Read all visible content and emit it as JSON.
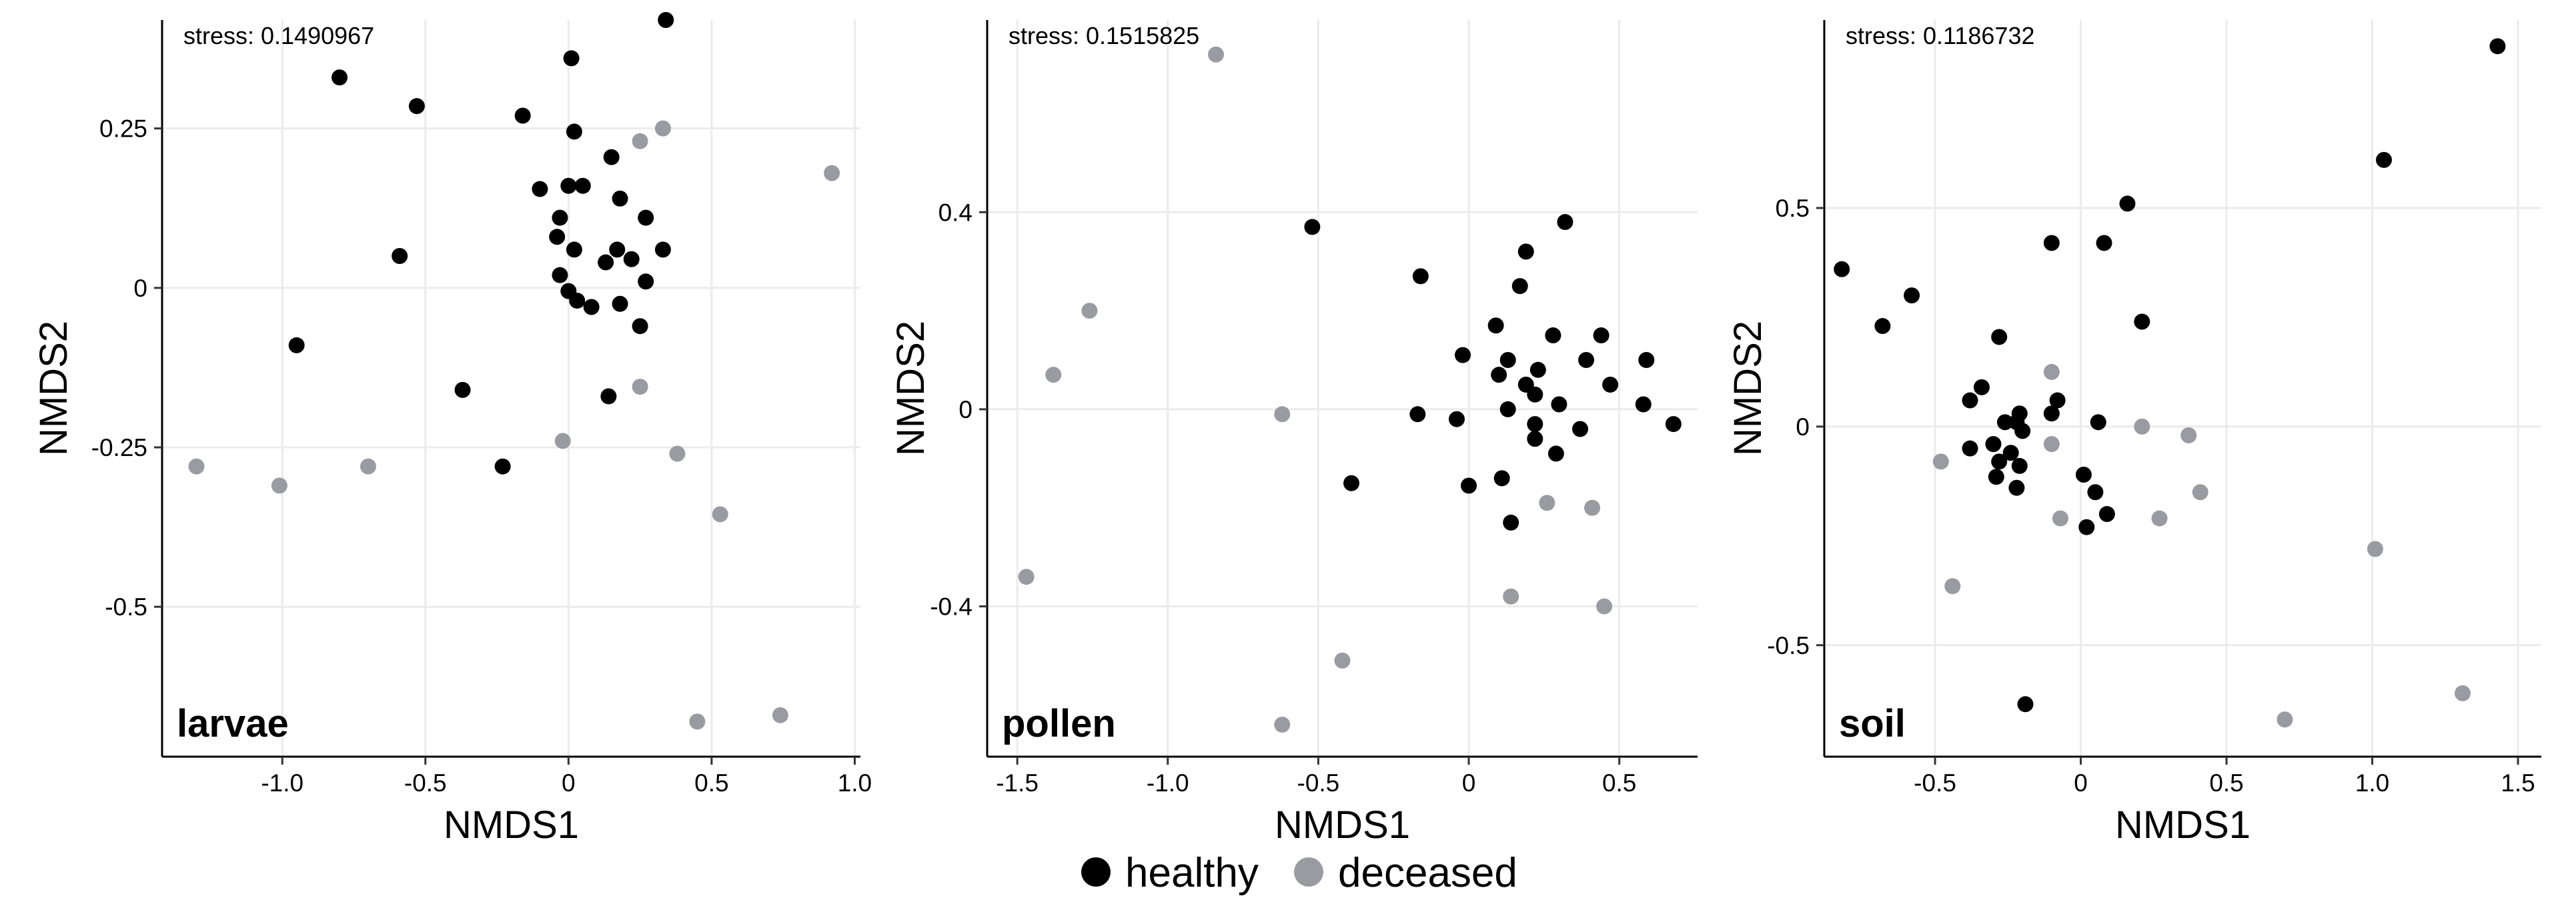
{
  "colors": {
    "healthy": "#000000",
    "deceased": "#9a9ba0"
  },
  "legend": {
    "items": [
      {
        "key": "healthy",
        "label": "healthy"
      },
      {
        "key": "deceased",
        "label": "deceased"
      }
    ]
  },
  "chart_data": [
    {
      "type": "scatter",
      "panel_label": "larvae",
      "stress_text": "stress: 0.1490967",
      "xlabel": "NMDS1",
      "ylabel": "NMDS2",
      "xlim": [
        -1.42,
        1.02
      ],
      "ylim": [
        -0.735,
        0.42
      ],
      "xticks": [
        -1.0,
        -0.5,
        0,
        0.5,
        1.0
      ],
      "xtick_labels": [
        "-1.0",
        "-0.5",
        "0",
        "0.5",
        "1.0"
      ],
      "yticks": [
        -0.5,
        -0.25,
        0,
        0.25
      ],
      "ytick_labels": [
        "-0.5",
        "-0.25",
        "0",
        "0.25"
      ],
      "grid": true,
      "series": [
        {
          "name": "healthy",
          "points": [
            [
              0.34,
              0.42
            ],
            [
              0.01,
              0.36
            ],
            [
              -0.8,
              0.33
            ],
            [
              -0.53,
              0.285
            ],
            [
              -0.16,
              0.27
            ],
            [
              0.02,
              0.245
            ],
            [
              0.15,
              0.205
            ],
            [
              -0.1,
              0.155
            ],
            [
              0.0,
              0.16
            ],
            [
              0.05,
              0.16
            ],
            [
              0.18,
              0.14
            ],
            [
              -0.03,
              0.11
            ],
            [
              0.27,
              0.11
            ],
            [
              -0.04,
              0.08
            ],
            [
              0.02,
              0.06
            ],
            [
              0.17,
              0.06
            ],
            [
              0.33,
              0.06
            ],
            [
              0.22,
              0.045
            ],
            [
              0.13,
              0.04
            ],
            [
              -0.03,
              0.02
            ],
            [
              0.27,
              0.01
            ],
            [
              -0.59,
              0.05
            ],
            [
              0.0,
              -0.005
            ],
            [
              0.03,
              -0.02
            ],
            [
              0.08,
              -0.03
            ],
            [
              0.18,
              -0.025
            ],
            [
              0.25,
              -0.06
            ],
            [
              -0.95,
              -0.09
            ],
            [
              -0.37,
              -0.16
            ],
            [
              0.14,
              -0.17
            ],
            [
              -0.23,
              -0.28
            ]
          ]
        },
        {
          "name": "deceased",
          "points": [
            [
              0.33,
              0.25
            ],
            [
              0.25,
              0.23
            ],
            [
              0.92,
              0.18
            ],
            [
              0.25,
              -0.155
            ],
            [
              -0.02,
              -0.24
            ],
            [
              0.38,
              -0.26
            ],
            [
              -1.3,
              -0.28
            ],
            [
              -0.7,
              -0.28
            ],
            [
              -1.01,
              -0.31
            ],
            [
              0.53,
              -0.355
            ],
            [
              0.74,
              -0.67
            ],
            [
              0.45,
              -0.68
            ]
          ]
        }
      ]
    },
    {
      "type": "scatter",
      "panel_label": "pollen",
      "stress_text": "stress: 0.1515825",
      "xlabel": "NMDS1",
      "ylabel": "NMDS2",
      "xlim": [
        -1.6,
        0.76
      ],
      "ylim": [
        -0.705,
        0.79
      ],
      "xticks": [
        -1.5,
        -1.0,
        -0.5,
        0,
        0.5
      ],
      "xtick_labels": [
        "-1.5",
        "-1.0",
        "-0.5",
        "0",
        "0.5"
      ],
      "yticks": [
        -0.4,
        0,
        0.4
      ],
      "ytick_labels": [
        "-0.4",
        "0",
        "0.4"
      ],
      "grid": true,
      "series": [
        {
          "name": "healthy",
          "points": [
            [
              -0.52,
              0.37
            ],
            [
              0.32,
              0.38
            ],
            [
              0.19,
              0.32
            ],
            [
              -0.16,
              0.27
            ],
            [
              0.17,
              0.25
            ],
            [
              0.09,
              0.17
            ],
            [
              0.28,
              0.15
            ],
            [
              0.44,
              0.15
            ],
            [
              -0.02,
              0.11
            ],
            [
              0.39,
              0.1
            ],
            [
              0.59,
              0.1
            ],
            [
              0.13,
              0.1
            ],
            [
              0.23,
              0.08
            ],
            [
              0.1,
              0.07
            ],
            [
              0.47,
              0.05
            ],
            [
              0.19,
              0.05
            ],
            [
              0.22,
              0.03
            ],
            [
              0.3,
              0.01
            ],
            [
              0.58,
              0.01
            ],
            [
              -0.17,
              -0.01
            ],
            [
              -0.04,
              -0.02
            ],
            [
              0.13,
              0.0
            ],
            [
              0.22,
              -0.03
            ],
            [
              0.37,
              -0.04
            ],
            [
              0.68,
              -0.03
            ],
            [
              0.22,
              -0.06
            ],
            [
              0.29,
              -0.09
            ],
            [
              -0.39,
              -0.15
            ],
            [
              0.0,
              -0.155
            ],
            [
              0.11,
              -0.14
            ],
            [
              0.14,
              -0.23
            ]
          ]
        },
        {
          "name": "deceased",
          "points": [
            [
              -0.84,
              0.72
            ],
            [
              -1.26,
              0.2
            ],
            [
              -1.38,
              0.07
            ],
            [
              -0.62,
              -0.01
            ],
            [
              0.26,
              -0.19
            ],
            [
              0.41,
              -0.2
            ],
            [
              -1.47,
              -0.34
            ],
            [
              0.14,
              -0.38
            ],
            [
              0.45,
              -0.4
            ],
            [
              -0.42,
              -0.51
            ],
            [
              -0.62,
              -0.64
            ]
          ]
        }
      ]
    },
    {
      "type": "scatter",
      "panel_label": "soil",
      "stress_text": "stress: 0.1186732",
      "xlabel": "NMDS1",
      "ylabel": "NMDS2",
      "xlim": [
        -0.88,
        1.58
      ],
      "ylim": [
        -0.755,
        0.93
      ],
      "xticks": [
        -0.5,
        0,
        0.5,
        1.0,
        1.5
      ],
      "xtick_labels": [
        "-0.5",
        "0",
        "0.5",
        "1.0",
        "1.5"
      ],
      "yticks": [
        -0.5,
        0,
        0.5
      ],
      "ytick_labels": [
        "-0.5",
        "0",
        "0.5"
      ],
      "grid": true,
      "series": [
        {
          "name": "healthy",
          "points": [
            [
              1.43,
              0.87
            ],
            [
              1.04,
              0.61
            ],
            [
              0.16,
              0.51
            ],
            [
              -0.1,
              0.42
            ],
            [
              0.08,
              0.42
            ],
            [
              -0.82,
              0.36
            ],
            [
              -0.58,
              0.3
            ],
            [
              -0.68,
              0.23
            ],
            [
              0.21,
              0.24
            ],
            [
              -0.28,
              0.205
            ],
            [
              -0.34,
              0.09
            ],
            [
              -0.38,
              0.06
            ],
            [
              -0.08,
              0.06
            ],
            [
              -0.1,
              0.03
            ],
            [
              -0.21,
              0.03
            ],
            [
              -0.26,
              0.01
            ],
            [
              -0.22,
              0.01
            ],
            [
              -0.2,
              -0.01
            ],
            [
              0.06,
              0.01
            ],
            [
              -0.3,
              -0.04
            ],
            [
              -0.38,
              -0.05
            ],
            [
              -0.24,
              -0.06
            ],
            [
              -0.28,
              -0.08
            ],
            [
              -0.21,
              -0.09
            ],
            [
              0.01,
              -0.11
            ],
            [
              -0.29,
              -0.115
            ],
            [
              -0.22,
              -0.14
            ],
            [
              0.05,
              -0.15
            ],
            [
              0.09,
              -0.2
            ],
            [
              0.02,
              -0.23
            ],
            [
              -0.19,
              -0.635
            ]
          ]
        },
        {
          "name": "deceased",
          "points": [
            [
              -0.1,
              0.125
            ],
            [
              0.21,
              0.0
            ],
            [
              0.37,
              -0.02
            ],
            [
              -0.1,
              -0.04
            ],
            [
              -0.48,
              -0.08
            ],
            [
              0.41,
              -0.15
            ],
            [
              -0.07,
              -0.21
            ],
            [
              0.27,
              -0.21
            ],
            [
              1.01,
              -0.28
            ],
            [
              -0.44,
              -0.365
            ],
            [
              1.31,
              -0.61
            ],
            [
              0.7,
              -0.67
            ]
          ]
        }
      ]
    }
  ]
}
